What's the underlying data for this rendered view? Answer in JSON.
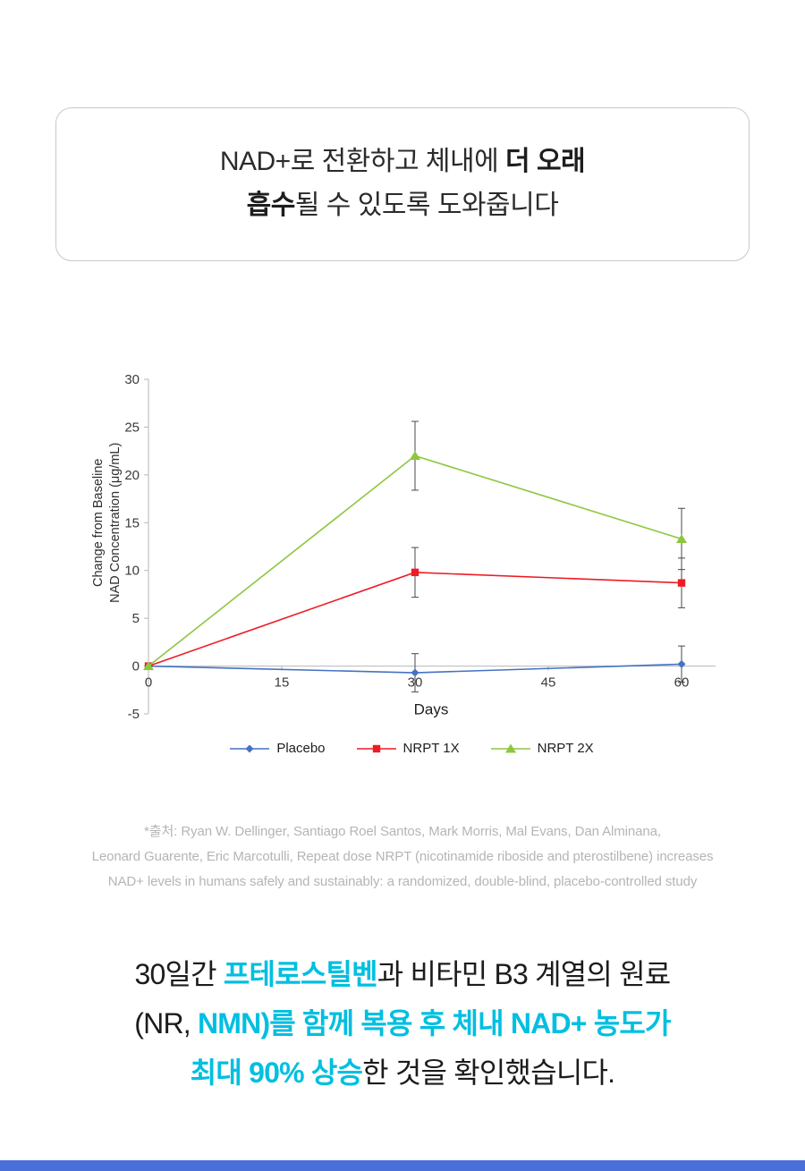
{
  "colors": {
    "accent": "#00bfe0",
    "bottom_strip": "#4a6fd8",
    "chart_axis": "#b7b7b7",
    "error_bar": "#4a4a4a"
  },
  "header": {
    "seg1": "NAD+로 전환하고 체내에 ",
    "seg2": "더 오래",
    "seg3": "흡수",
    "seg4": "될 수 있도록 도와줍니다"
  },
  "chart_data": {
    "type": "line",
    "x": [
      0,
      30,
      60
    ],
    "x_ticks": [
      0,
      15,
      30,
      45,
      60
    ],
    "xlabel": "Days",
    "ylabel": "Change from Baseline NAD Concentration (μg/mL)",
    "ylabel_line1": "Change from Baseline",
    "ylabel_line2": "NAD Concentration (μg/mL)",
    "ylim": [
      -5,
      30
    ],
    "y_ticks": [
      30,
      25,
      20,
      15,
      10,
      5,
      0,
      -5
    ],
    "grid": false,
    "legend_position": "bottom",
    "series": [
      {
        "name": "Placebo",
        "marker": "diamond",
        "color": "#4472c4",
        "values": [
          0,
          -0.7,
          0.2
        ],
        "err": [
          0,
          2.0,
          1.9
        ]
      },
      {
        "name": "NRPT 1X",
        "marker": "square",
        "color": "#ed1c24",
        "values": [
          0,
          9.8,
          8.7
        ],
        "err": [
          0,
          2.6,
          2.6
        ]
      },
      {
        "name": "NRPT 2X",
        "marker": "triangle",
        "color": "#8dc63f",
        "values": [
          0,
          22.0,
          13.3
        ],
        "err": [
          0,
          3.6,
          3.2
        ]
      }
    ]
  },
  "citation": {
    "line1": "*출처: Ryan W. Dellinger, Santiago Roel Santos, Mark Morris, Mal Evans, Dan Alminana,",
    "line2": "Leonard Guarente, Eric Marcotulli, Repeat dose NRPT (nicotinamide riboside and pterostilbene) increases",
    "line3": "NAD+ levels in humans safely and sustainably: a randomized, double-blind, placebo-controlled study"
  },
  "footer": {
    "l1_a": "30일간 ",
    "l1_b": "프테로스틸벤",
    "l1_c": "과 비타민 B3 계열의 원료",
    "l2_a": "(NR, ",
    "l2_b": "NMN)를 함께 복용 후 체내 NAD+ 농도가",
    "l3_a": "최대 90% 상승",
    "l3_b": "한 것을 확인했습니다."
  }
}
